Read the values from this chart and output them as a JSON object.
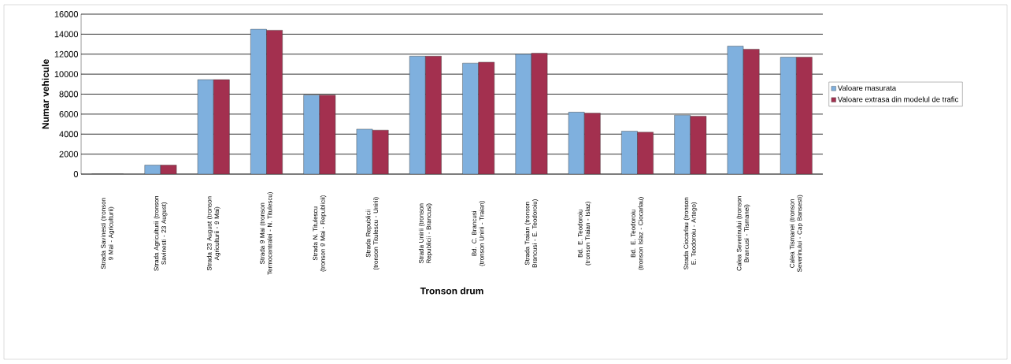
{
  "chart_data": {
    "type": "bar",
    "xlabel": "Tronson drum",
    "ylabel": "Numar vehicule",
    "categories": [
      "Strada Savinesti (tronson 9 Mai - Agriculturii)",
      "Strada Agriculturii (tronson Savinesti - 23 August)",
      "Strada 23 August (tronson Agriculturii - 9 Mai)",
      "Strada 9 Mai (tronson Termocentralei - N. Titulescu)",
      "Strada N. Titulescu (tronson 9 Mai - Republicii)",
      "Strada Republicii (tronson Titulescu - Unirii)",
      "Strada Unirii (tronson Republicii - Brancusi)",
      "Bd. C. Brancusi (tronson Unirii - Traian)",
      "Strada Traian (tronson Brancusi - E. Teodoroiu)",
      "Bd. E. Teodoroiu (tronson Traian - Islaz)",
      "Bd. E. Teodoroiu (tronson Islaz - Ciocarlau)",
      "Strada Ciocarlau (tronson E. Teodoroiu - Artego)",
      "Calea Severinului (tronson Brancusi - Tismanei)",
      "Calea Tismanei (tronson Severinului - Cap Bansesti)"
    ],
    "series": [
      {
        "name": "Valoare masurata",
        "color": "#7fb0de",
        "values": [
          0,
          900,
          9450,
          14500,
          7900,
          4500,
          11800,
          11100,
          12000,
          6200,
          4300,
          5900,
          12800,
          11700
        ]
      },
      {
        "name": "Valoare extrasa din modelul de trafic",
        "color": "#a3304f",
        "values": [
          0,
          900,
          9450,
          14400,
          7900,
          4400,
          11800,
          11200,
          12100,
          6100,
          4200,
          5800,
          12500,
          11700
        ]
      }
    ],
    "ylim": [
      0,
      16000
    ],
    "yticks": [
      0,
      2000,
      4000,
      6000,
      8000,
      10000,
      12000,
      14000,
      16000
    ],
    "grid": "y",
    "legend": "right"
  }
}
